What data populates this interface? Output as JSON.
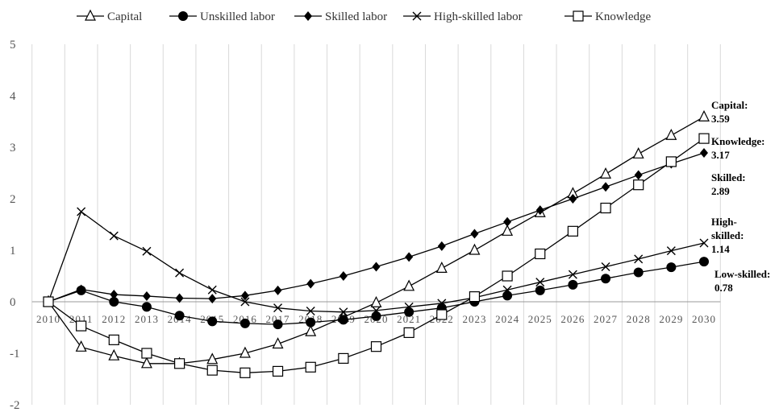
{
  "chart_data": {
    "type": "line",
    "title": "",
    "xlabel": "",
    "ylabel": "",
    "x": [
      "2010",
      "2011",
      "2012",
      "2013",
      "2014",
      "2015",
      "2016",
      "2017",
      "2018",
      "2019",
      "2020",
      "2021",
      "2022",
      "2023",
      "2024",
      "2025",
      "2026",
      "2027",
      "2028",
      "2029",
      "2030"
    ],
    "ylim": [
      -2,
      5
    ],
    "yticks": [
      "-2",
      "-1",
      "0",
      "1",
      "2",
      "3",
      "4",
      "5"
    ],
    "grid": "vertical",
    "legend_position": "top",
    "series": [
      {
        "name": "Capital",
        "marker": "triangle-open",
        "values": [
          0,
          -0.88,
          -1.05,
          -1.2,
          -1.2,
          -1.12,
          -1.0,
          -0.82,
          -0.58,
          -0.3,
          -0.02,
          0.3,
          0.65,
          1.0,
          1.37,
          1.73,
          2.1,
          2.48,
          2.87,
          3.23,
          3.59
        ]
      },
      {
        "name": "Unskilled labor",
        "marker": "circle-filled",
        "values": [
          0,
          0.22,
          0.0,
          -0.1,
          -0.27,
          -0.38,
          -0.42,
          -0.44,
          -0.4,
          -0.35,
          -0.28,
          -0.2,
          -0.12,
          0.0,
          0.12,
          0.22,
          0.33,
          0.45,
          0.57,
          0.67,
          0.78
        ]
      },
      {
        "name": "Skilled labor",
        "marker": "diamond-filled",
        "values": [
          0,
          0.24,
          0.14,
          0.11,
          0.07,
          0.06,
          0.12,
          0.22,
          0.35,
          0.5,
          0.68,
          0.87,
          1.08,
          1.32,
          1.55,
          1.78,
          2.0,
          2.23,
          2.46,
          2.68,
          2.89
        ]
      },
      {
        "name": "High-skilled labor",
        "marker": "x",
        "values": [
          0,
          1.75,
          1.28,
          0.98,
          0.56,
          0.23,
          0.0,
          -0.12,
          -0.18,
          -0.2,
          -0.17,
          -0.1,
          -0.03,
          0.08,
          0.23,
          0.38,
          0.53,
          0.68,
          0.83,
          0.99,
          1.14
        ]
      },
      {
        "name": "Knowledge",
        "marker": "square-open",
        "values": [
          0,
          -0.47,
          -0.74,
          -1.0,
          -1.2,
          -1.33,
          -1.38,
          -1.35,
          -1.27,
          -1.1,
          -0.87,
          -0.6,
          -0.25,
          0.1,
          0.5,
          0.93,
          1.37,
          1.82,
          2.27,
          2.72,
          3.17
        ]
      }
    ],
    "annotations": [
      {
        "line1": "Capital:",
        "line2": "3.59"
      },
      {
        "line1": "Knowledge:",
        "line2": "3.17"
      },
      {
        "line1": "Skilled:",
        "line2": "2.89"
      },
      {
        "line1": "High-",
        "line2": "skilled:",
        "line3": "1.14"
      },
      {
        "line1": "Low-skilled:",
        "line2": "0.78"
      }
    ]
  }
}
